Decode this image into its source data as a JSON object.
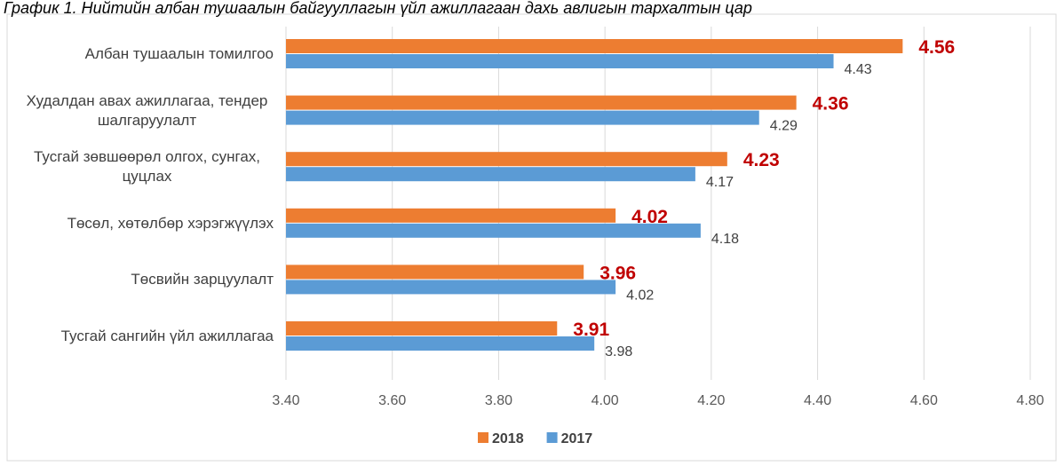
{
  "chart_data": {
    "type": "hbar",
    "title": "График 1. Нийтийн албан тушаалын байгууллагын үйл ажиллагаан дахь авлигын тархалтын цар",
    "categories": [
      "Албан тушаалын томилгоо",
      "Худалдан авах ажиллагаа, тендер шалгаруулалт",
      "Тусгай зөвшөөрөл олгох, сунгах, цуцлах",
      "Төсөл, хөтөлбөр хэрэгжүүлэх",
      "Төсвийн зарцуулалт",
      "Тусгай сангийн үйл ажиллагаа"
    ],
    "series": [
      {
        "name": "2018",
        "color": "#ed7d31",
        "values": [
          4.56,
          4.36,
          4.23,
          4.02,
          3.96,
          3.91
        ]
      },
      {
        "name": "2017",
        "color": "#5b9bd5",
        "values": [
          4.43,
          4.29,
          4.17,
          4.18,
          4.02,
          3.98
        ]
      }
    ],
    "xlim": [
      3.4,
      4.8
    ],
    "xticks": [
      {
        "value": 3.4,
        "label": "3.40"
      },
      {
        "value": 3.6,
        "label": "3.60"
      },
      {
        "value": 3.8,
        "label": "3.80"
      },
      {
        "value": 4.0,
        "label": "4.00"
      },
      {
        "value": 4.2,
        "label": "4.20"
      },
      {
        "value": 4.4,
        "label": "4.40"
      },
      {
        "value": 4.6,
        "label": "4.60"
      },
      {
        "value": 4.8,
        "label": "4.80"
      }
    ],
    "grid": true,
    "legend": "bottom"
  }
}
